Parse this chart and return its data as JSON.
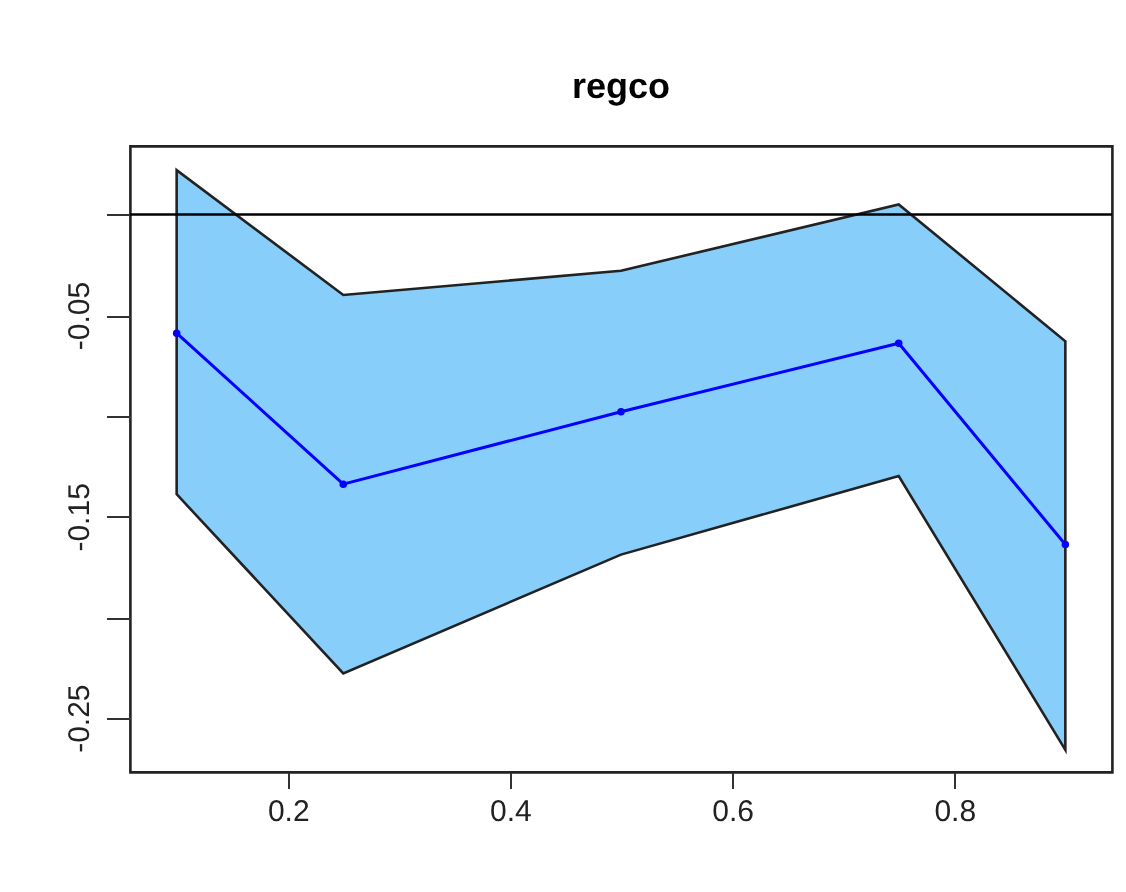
{
  "chart_data": {
    "type": "line",
    "title": "regco",
    "x": [
      0.1,
      0.25,
      0.5,
      0.75,
      0.9
    ],
    "series": [
      {
        "color": "#0000ff",
        "values": [
          -0.059,
          -0.134,
          -0.098,
          -0.064,
          -0.164
        ],
        "lower": [
          -0.139,
          -0.228,
          -0.169,
          -0.13,
          -0.266
        ],
        "upper": [
          0.022,
          -0.04,
          -0.028,
          0.005,
          -0.063
        ]
      }
    ],
    "xlim": [
      0.058,
      0.942
    ],
    "ylim": [
      -0.277,
      0.034
    ],
    "xticks": [
      0.2,
      0.4,
      0.6,
      0.8
    ],
    "yticks": [
      {
        "value": 0,
        "label": null
      },
      -0.05,
      {
        "value": -0.1,
        "label": null
      },
      -0.15,
      {
        "value": -0.2,
        "label": null
      },
      -0.25
    ],
    "ref_lines": [
      {
        "axis": "y",
        "value": 0,
        "color": "#000000"
      }
    ],
    "grid": false,
    "marker": "circle",
    "line_style": "solid"
  }
}
